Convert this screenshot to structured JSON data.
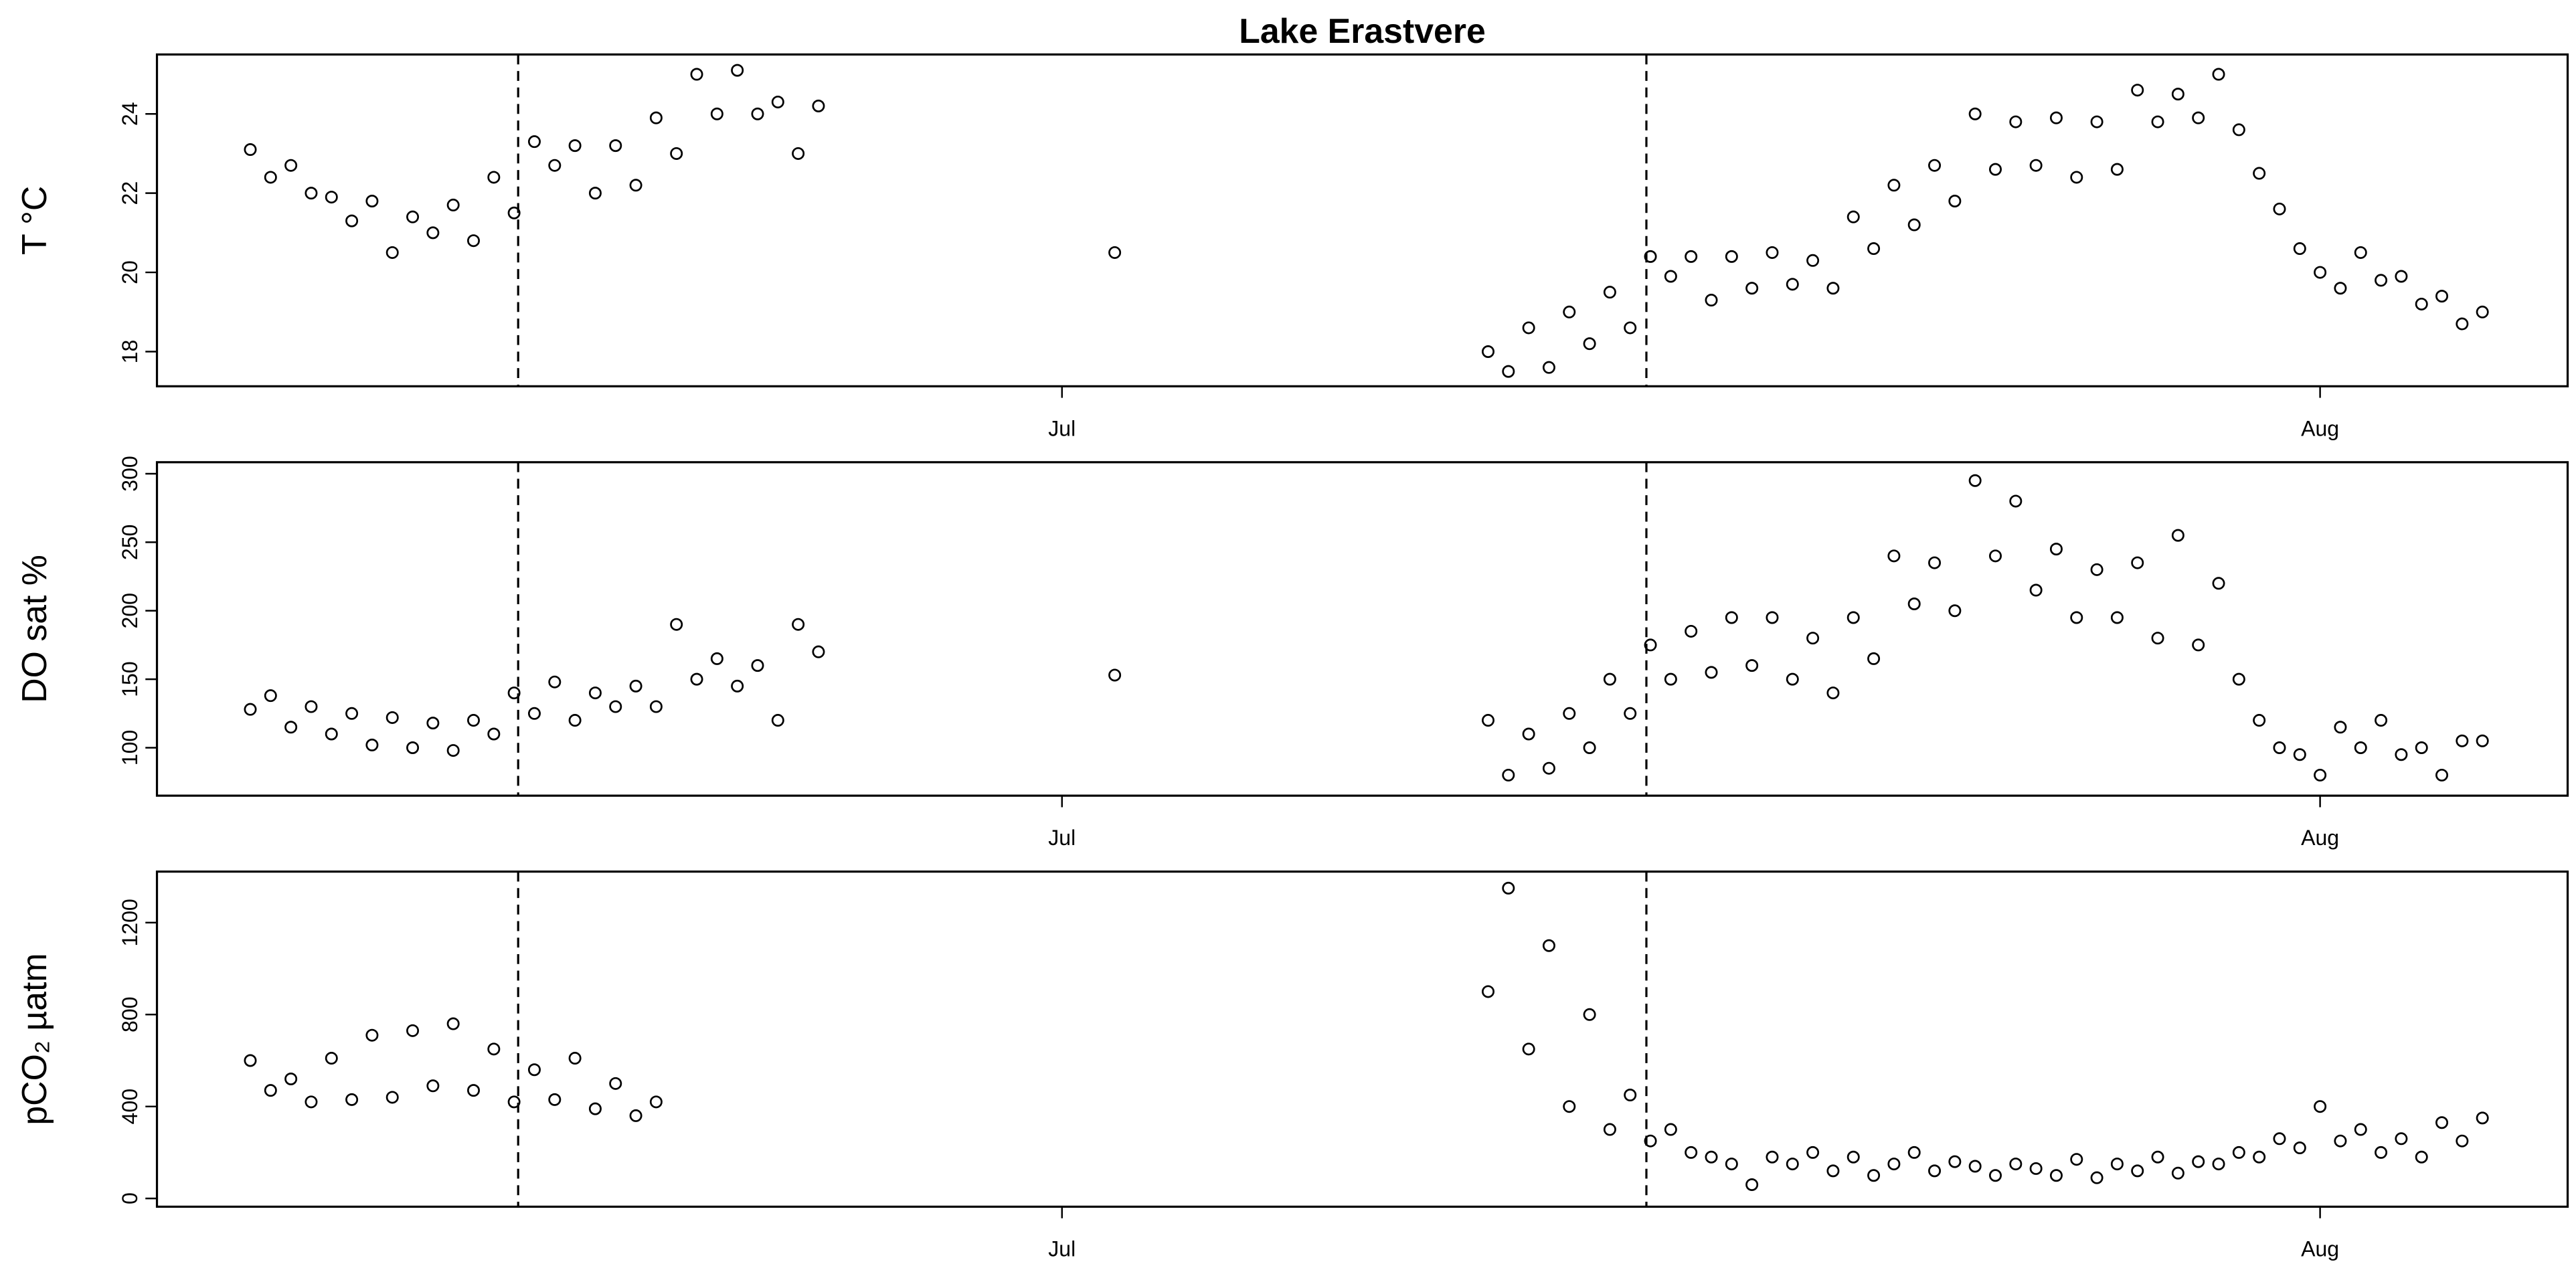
{
  "chart_data": [
    {
      "type": "scatter",
      "title": "Lake Erastvere",
      "ylabel": "T °C",
      "x": [
        -20,
        -19.5,
        -19,
        -18.5,
        -18,
        -17.5,
        -17,
        -16.5,
        -16,
        -15.5,
        -15,
        -14.5,
        -14,
        -13.5,
        -13,
        -12.5,
        -12,
        -11.5,
        -11,
        -10.5,
        -10,
        -9.5,
        -9,
        -8.5,
        -8,
        -7.5,
        -7,
        -6.5,
        -6,
        1.3,
        10.5,
        11,
        11.5,
        12,
        12.5,
        13,
        13.5,
        14,
        14.5,
        15,
        15.5,
        16,
        16.5,
        17,
        17.5,
        18,
        18.5,
        19,
        19.5,
        20,
        20.5,
        21,
        21.5,
        22,
        22.5,
        23,
        23.5,
        24,
        24.5,
        25,
        25.5,
        26,
        26.5,
        27,
        27.5,
        28,
        28.5,
        29,
        29.5,
        30,
        30.5,
        31,
        31.5,
        32,
        32.5,
        33,
        33.5,
        34,
        34.5,
        35
      ],
      "values": [
        23.1,
        22.4,
        22.7,
        22.0,
        21.9,
        21.3,
        21.8,
        20.5,
        21.4,
        21.0,
        21.7,
        20.8,
        22.4,
        21.5,
        23.3,
        22.7,
        23.2,
        22.0,
        23.2,
        22.2,
        23.9,
        23.0,
        25.0,
        24.0,
        25.1,
        24.0,
        24.3,
        23.0,
        24.2,
        20.5,
        18.0,
        17.5,
        18.6,
        17.6,
        19.0,
        18.2,
        19.5,
        18.6,
        20.4,
        19.9,
        20.4,
        19.3,
        20.4,
        19.6,
        20.5,
        19.7,
        20.3,
        19.6,
        21.4,
        20.6,
        22.2,
        21.2,
        22.7,
        21.8,
        24.0,
        22.6,
        23.8,
        22.7,
        23.9,
        22.4,
        23.8,
        22.6,
        24.6,
        23.8,
        24.5,
        23.9,
        25.0,
        23.6,
        22.5,
        21.6,
        20.6,
        20.0,
        19.6,
        20.5,
        19.8,
        19.9,
        19.2,
        19.4,
        18.7,
        19.0
      ],
      "xlim": [
        -22.3,
        37.1
      ],
      "xticks": [
        {
          "value": 0,
          "label": "Jul"
        },
        {
          "value": 31,
          "label": "Aug"
        }
      ],
      "ylim": [
        17.125,
        25.5
      ],
      "yticks": [
        18,
        20,
        22,
        24
      ],
      "vlines": [
        -13.4,
        14.4
      ],
      "color": "#000000"
    },
    {
      "type": "scatter",
      "ylabel": "DO sat %",
      "x": [
        -20,
        -19.5,
        -19,
        -18.5,
        -18,
        -17.5,
        -17,
        -16.5,
        -16,
        -15.5,
        -15,
        -14.5,
        -14,
        -13.5,
        -13,
        -12.5,
        -12,
        -11.5,
        -11,
        -10.5,
        -10,
        -9.5,
        -9,
        -8.5,
        -8,
        -7.5,
        -7,
        -6.5,
        -6,
        1.3,
        10.5,
        11,
        11.5,
        12,
        12.5,
        13,
        13.5,
        14,
        14.5,
        15,
        15.5,
        16,
        16.5,
        17,
        17.5,
        18,
        18.5,
        19,
        19.5,
        20,
        20.5,
        21,
        21.5,
        22,
        22.5,
        23,
        23.5,
        24,
        24.5,
        25,
        25.5,
        26,
        26.5,
        27,
        27.5,
        28,
        28.5,
        29,
        29.5,
        30,
        30.5,
        31,
        31.5,
        32,
        32.5,
        33,
        33.5,
        34,
        34.5,
        35
      ],
      "values": [
        128,
        138,
        115,
        130,
        110,
        125,
        102,
        122,
        100,
        118,
        98,
        120,
        110,
        140,
        125,
        148,
        120,
        140,
        130,
        145,
        130,
        190,
        150,
        165,
        145,
        160,
        120,
        190,
        170,
        153,
        120,
        80,
        110,
        85,
        125,
        100,
        150,
        125,
        175,
        150,
        185,
        155,
        195,
        160,
        195,
        150,
        180,
        140,
        195,
        165,
        240,
        205,
        235,
        200,
        295,
        240,
        280,
        215,
        245,
        195,
        230,
        195,
        235,
        180,
        255,
        175,
        220,
        150,
        120,
        100,
        95,
        80,
        115,
        100,
        120,
        95,
        100,
        80,
        105,
        105
      ],
      "xlim": [
        -22.3,
        37.1
      ],
      "xticks": [
        {
          "value": 0,
          "label": "Jul"
        },
        {
          "value": 31,
          "label": "Aug"
        }
      ],
      "ylim": [
        65,
        308.4
      ],
      "yticks": [
        100,
        150,
        200,
        250,
        300
      ],
      "vlines": [
        -13.4,
        14.4
      ],
      "color": "#000000"
    },
    {
      "type": "scatter",
      "ylabel": "pCO₂ µatm",
      "x": [
        -20,
        -19.5,
        -19,
        -18.5,
        -18,
        -17.5,
        -17,
        -16.5,
        -16,
        -15.5,
        -15,
        -14.5,
        -14,
        -13.5,
        -13,
        -12.5,
        -12,
        -11.5,
        -11,
        -10.5,
        -10,
        10.5,
        11,
        11.5,
        12,
        12.5,
        13,
        13.5,
        14,
        14.5,
        15,
        15.5,
        16,
        16.5,
        17,
        17.5,
        18,
        18.5,
        19,
        19.5,
        20,
        20.5,
        21,
        21.5,
        22,
        22.5,
        23,
        23.5,
        24,
        24.5,
        25,
        25.5,
        26,
        26.5,
        27,
        27.5,
        28,
        28.5,
        29,
        29.5,
        30,
        30.5,
        31,
        31.5,
        32,
        32.5,
        33,
        33.5,
        34,
        34.5,
        35
      ],
      "values": [
        600,
        470,
        520,
        420,
        610,
        430,
        710,
        440,
        730,
        490,
        760,
        470,
        650,
        420,
        560,
        430,
        610,
        390,
        500,
        360,
        420,
        900,
        1350,
        650,
        1100,
        400,
        800,
        300,
        450,
        250,
        300,
        200,
        180,
        150,
        60,
        180,
        150,
        200,
        120,
        180,
        100,
        150,
        200,
        120,
        160,
        140,
        100,
        150,
        130,
        100,
        170,
        90,
        150,
        120,
        180,
        110,
        160,
        150,
        200,
        180,
        260,
        220,
        400,
        250,
        300,
        200,
        260,
        180,
        330,
        250,
        350
      ],
      "xlim": [
        -22.3,
        37.1
      ],
      "xticks": [
        {
          "value": 0,
          "label": "Jul"
        },
        {
          "value": 31,
          "label": "Aug"
        }
      ],
      "ylim": [
        -36,
        1422
      ],
      "yticks": [
        0,
        400,
        800,
        1200
      ],
      "vlines": [
        -13.4,
        14.4
      ],
      "color": "#000000"
    }
  ]
}
